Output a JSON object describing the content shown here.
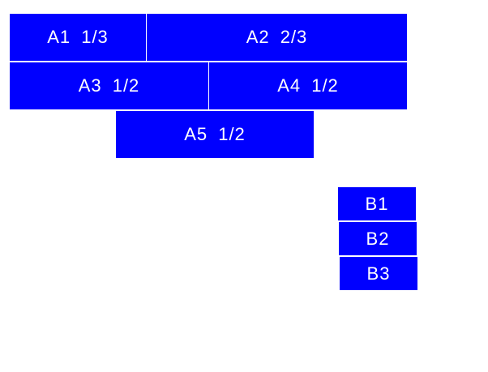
{
  "color": "#0000ff",
  "group_a": [
    "A1 1/3",
    "A2 2/3",
    "A3 1/2",
    "A4 1/2",
    "A5 1/2"
  ],
  "group_b": [
    "B1",
    "B2",
    "B3"
  ]
}
